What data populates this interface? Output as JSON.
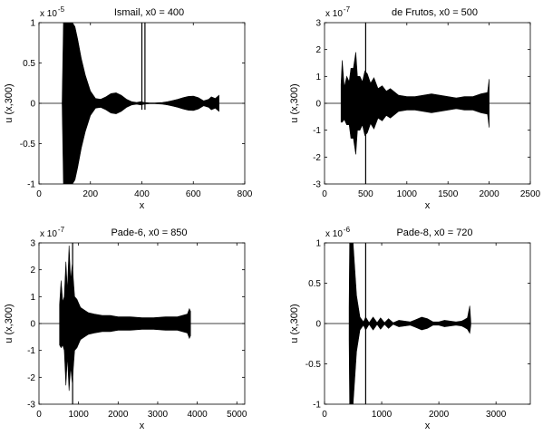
{
  "figure": {
    "background": "#ffffff",
    "line_color": "#000000"
  },
  "chart_data": [
    {
      "type": "line",
      "title": "Ismail, x0 = 400",
      "xlabel": "x",
      "ylabel": "u (x,300)",
      "exponent_label": "x 10",
      "exponent_power": "-5",
      "xlim": [
        0,
        800
      ],
      "ylim": [
        -1,
        1
      ],
      "xticks": [
        0,
        200,
        400,
        600,
        800
      ],
      "yticks": [
        -1,
        -0.5,
        0,
        0.5,
        1
      ],
      "xtick_labels": [
        "0",
        "200",
        "400",
        "600",
        "800"
      ],
      "ytick_labels": [
        "-1",
        "-0.5",
        "0",
        "0.5",
        "1"
      ],
      "grid": false,
      "series": [
        {
          "style": "oscillation-envelope",
          "x": [
            90,
            95,
            100,
            110,
            120,
            130,
            140,
            150,
            165,
            180,
            200,
            220,
            240,
            260,
            280,
            300,
            320,
            340,
            360,
            380,
            395,
            410,
            430,
            450,
            480,
            500,
            520,
            540,
            560,
            580,
            600,
            620,
            640,
            660,
            670,
            685,
            700
          ],
          "upper": [
            0,
            1,
            1,
            1,
            1,
            1,
            0.95,
            0.8,
            0.55,
            0.35,
            0.15,
            0.06,
            0.05,
            0.08,
            0.12,
            0.13,
            0.1,
            0.05,
            0.02,
            0.01,
            0.02,
            0.01,
            0.005,
            0.005,
            0.01,
            0.02,
            0.035,
            0.05,
            0.07,
            0.085,
            0.09,
            0.07,
            0.03,
            0.05,
            0.08,
            0.06,
            0.1
          ],
          "lower": [
            0,
            -1,
            -1,
            -1,
            -1,
            -1,
            -0.95,
            -0.8,
            -0.55,
            -0.35,
            -0.15,
            -0.06,
            -0.05,
            -0.08,
            -0.12,
            -0.13,
            -0.1,
            -0.05,
            -0.02,
            -0.01,
            -0.02,
            -0.01,
            -0.005,
            -0.005,
            -0.01,
            -0.02,
            -0.035,
            -0.05,
            -0.07,
            -0.085,
            -0.09,
            -0.07,
            -0.03,
            -0.05,
            -0.08,
            -0.06,
            -0.1
          ]
        },
        {
          "style": "vertical-line",
          "x": 400,
          "y": [
            -0.08,
            1
          ]
        },
        {
          "style": "vertical-line",
          "x": 412,
          "y": [
            -0.08,
            1
          ]
        },
        {
          "style": "baseline",
          "y": 0
        }
      ]
    },
    {
      "type": "line",
      "title": "de Frutos, x0 = 500",
      "xlabel": "x",
      "ylabel": "u (x,300)",
      "exponent_label": "x 10",
      "exponent_power": "-7",
      "xlim": [
        0,
        2500
      ],
      "ylim": [
        -3,
        3
      ],
      "xticks": [
        0,
        500,
        1000,
        1500,
        2000,
        2500
      ],
      "yticks": [
        -3,
        -2,
        -1,
        0,
        1,
        2,
        3
      ],
      "xtick_labels": [
        "0",
        "500",
        "1000",
        "1500",
        "2000",
        "2500"
      ],
      "ytick_labels": [
        "-3",
        "-2",
        "-1",
        "0",
        "1",
        "2",
        "3"
      ],
      "grid": false,
      "series": [
        {
          "style": "oscillation-envelope",
          "x": [
            200,
            215,
            240,
            270,
            300,
            320,
            350,
            380,
            400,
            430,
            460,
            490,
            520,
            560,
            600,
            650,
            700,
            750,
            800,
            900,
            1000,
            1100,
            1200,
            1300,
            1400,
            1500,
            1600,
            1700,
            1800,
            1900,
            1980,
            2000
          ],
          "upper": [
            0.7,
            1.6,
            0.6,
            1.0,
            0.8,
            1.3,
            1.3,
            1.9,
            1.0,
            1.0,
            0.8,
            1.2,
            1.1,
            0.75,
            0.95,
            0.55,
            0.65,
            0.45,
            0.55,
            0.3,
            0.25,
            0.25,
            0.3,
            0.35,
            0.3,
            0.25,
            0.2,
            0.25,
            0.25,
            0.35,
            0.4,
            0.9
          ],
          "lower": [
            -0.7,
            -0.7,
            -0.6,
            -0.8,
            -0.8,
            -1.3,
            -1.3,
            -1.9,
            -1.0,
            -1.0,
            -0.8,
            -1.2,
            -1.1,
            -0.75,
            -0.95,
            -0.55,
            -0.65,
            -0.45,
            -0.55,
            -0.3,
            -0.25,
            -0.25,
            -0.3,
            -0.35,
            -0.3,
            -0.25,
            -0.2,
            -0.25,
            -0.25,
            -0.35,
            -0.4,
            -0.9
          ]
        },
        {
          "style": "vertical-line",
          "x": 500,
          "y": [
            -3,
            3
          ]
        },
        {
          "style": "baseline",
          "y": 0
        }
      ]
    },
    {
      "type": "line",
      "title": "Pade-6, x0 = 850",
      "xlabel": "x",
      "ylabel": "u (x,300)",
      "exponent_label": "x 10",
      "exponent_power": "-7",
      "xlim": [
        0,
        5200
      ],
      "ylim": [
        -3,
        3
      ],
      "xticks": [
        0,
        1000,
        2000,
        3000,
        4000,
        5000
      ],
      "yticks": [
        -3,
        -2,
        -1,
        0,
        1,
        2,
        3
      ],
      "xtick_labels": [
        "0",
        "1000",
        "2000",
        "3000",
        "4000",
        "5000"
      ],
      "ytick_labels": [
        "-3",
        "-2",
        "-1",
        "0",
        "1",
        "2",
        "3"
      ],
      "grid": false,
      "series": [
        {
          "style": "oscillation-envelope",
          "x": [
            520,
            560,
            600,
            640,
            680,
            720,
            760,
            800,
            840,
            900,
            960,
            1050,
            1150,
            1250,
            1400,
            1600,
            1800,
            2000,
            2300,
            2600,
            2900,
            3200,
            3500,
            3750,
            3800,
            3830
          ],
          "upper": [
            0.7,
            1.6,
            0.8,
            1.0,
            2.3,
            1.2,
            2.9,
            1.6,
            2.2,
            1.0,
            0.9,
            0.6,
            0.5,
            0.4,
            0.35,
            0.3,
            0.3,
            0.25,
            0.25,
            0.22,
            0.22,
            0.25,
            0.25,
            0.35,
            0.55,
            0.45
          ],
          "lower": [
            -0.8,
            -0.9,
            -0.8,
            -1.0,
            -2.3,
            -1.2,
            -2.5,
            -1.6,
            -2.2,
            -1.0,
            -0.9,
            -0.6,
            -0.5,
            -0.4,
            -0.35,
            -0.3,
            -0.3,
            -0.25,
            -0.25,
            -0.22,
            -0.22,
            -0.25,
            -0.25,
            -0.35,
            -0.55,
            -0.45
          ]
        },
        {
          "style": "vertical-line",
          "x": 850,
          "y": [
            -3,
            3
          ]
        },
        {
          "style": "baseline",
          "y": 0
        }
      ]
    },
    {
      "type": "line",
      "title": "Pade-8, x0 = 720",
      "xlabel": "x",
      "ylabel": "u (x,300)",
      "exponent_label": "x 10",
      "exponent_power": "-6",
      "xlim": [
        0,
        3600
      ],
      "ylim": [
        -1,
        1
      ],
      "xticks": [
        0,
        1000,
        2000,
        3000
      ],
      "yticks": [
        -1,
        -0.5,
        0,
        0.5,
        1
      ],
      "xtick_labels": [
        "0",
        "1000",
        "2000",
        "3000"
      ],
      "ytick_labels": [
        "-1",
        "-0.5",
        "0",
        "0.5",
        "1"
      ],
      "grid": false,
      "series": [
        {
          "style": "oscillation-envelope",
          "x": [
            430,
            440,
            470,
            500,
            560,
            620,
            680,
            720,
            780,
            850,
            920,
            980,
            1050,
            1120,
            1200,
            1300,
            1400,
            1500,
            1600,
            1700,
            1800,
            1900,
            2000,
            2100,
            2200,
            2300,
            2400,
            2450,
            2500,
            2540,
            2560
          ],
          "upper": [
            0.2,
            1,
            1,
            1,
            0.35,
            0.08,
            0.02,
            0.08,
            0.01,
            0.08,
            0.01,
            0.07,
            0.01,
            0.06,
            0.01,
            0.04,
            0.03,
            0.02,
            0.05,
            0.08,
            0.06,
            0.02,
            0.02,
            0.04,
            0.03,
            0.02,
            0.03,
            0.05,
            0.07,
            0.22,
            0.02
          ],
          "lower": [
            -0.2,
            -1,
            -1,
            -1,
            -0.35,
            -0.08,
            -0.02,
            -0.08,
            -0.01,
            -0.08,
            -0.01,
            -0.07,
            -0.01,
            -0.06,
            -0.01,
            -0.04,
            -0.03,
            -0.02,
            -0.05,
            -0.08,
            -0.06,
            -0.02,
            -0.02,
            -0.04,
            -0.03,
            -0.02,
            -0.03,
            -0.05,
            -0.07,
            -0.12,
            -0.02
          ]
        },
        {
          "style": "vertical-line",
          "x": 720,
          "y": [
            -1,
            1
          ]
        },
        {
          "style": "baseline",
          "y": 0
        }
      ]
    }
  ]
}
